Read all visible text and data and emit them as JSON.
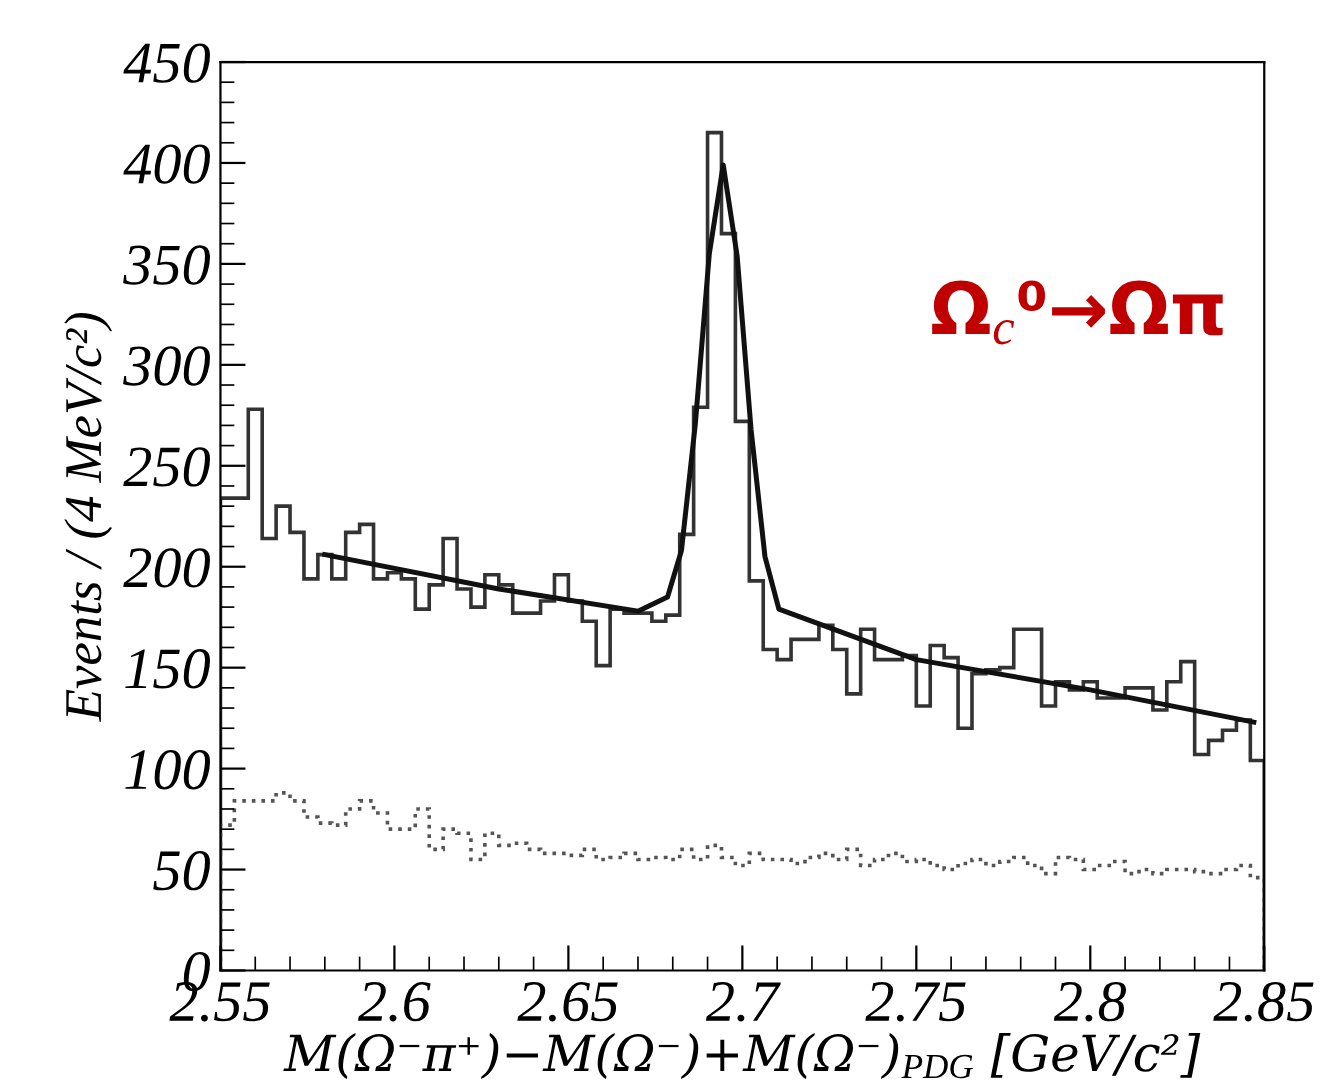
{
  "chart_data": {
    "type": "histogram",
    "xlabel": "M(Ω⁻π⁺)−M(Ω⁻)+M(Ω⁻)$_{PDG}$ [GeV/c²]",
    "ylabel": "Events / (4 MeV/c²)",
    "annotations": [
      "Ω$_{c}$⁰→Ωπ"
    ],
    "bins": [
      2.55,
      2.554,
      2.558,
      2.562,
      2.566,
      2.57,
      2.574,
      2.578,
      2.582,
      2.586,
      2.59,
      2.594,
      2.598,
      2.602,
      2.606,
      2.61,
      2.614,
      2.618,
      2.622,
      2.626,
      2.63,
      2.634,
      2.638,
      2.642,
      2.646,
      2.65,
      2.654,
      2.658,
      2.662,
      2.666,
      2.67,
      2.674,
      2.678,
      2.682,
      2.686,
      2.69,
      2.694,
      2.698,
      2.702,
      2.706,
      2.71,
      2.714,
      2.718,
      2.722,
      2.726,
      2.73,
      2.734,
      2.738,
      2.742,
      2.746,
      2.75,
      2.754,
      2.758,
      2.762,
      2.766,
      2.77,
      2.774,
      2.778,
      2.782,
      2.786,
      2.79,
      2.794,
      2.798,
      2.802,
      2.806,
      2.81,
      2.814,
      2.818,
      2.822,
      2.826,
      2.83,
      2.834,
      2.838,
      2.842,
      2.846,
      2.85
    ],
    "series": [
      {
        "color": "#333333",
        "line_style": "solid",
        "values": [
          234,
          234,
          278,
          214,
          230,
          217,
          194,
          206,
          194,
          217,
          221,
          194,
          197,
          194,
          179,
          191,
          214,
          189,
          180,
          196,
          191,
          177,
          177,
          183,
          196,
          183,
          173,
          151,
          179,
          177,
          177,
          173,
          176,
          216,
          279,
          415,
          365,
          272,
          193,
          159,
          154,
          164,
          164,
          171,
          159,
          137,
          169,
          154,
          154,
          156,
          131,
          161,
          155,
          120,
          147,
          149,
          150,
          169,
          169,
          131,
          143,
          139,
          143,
          135,
          135,
          140,
          140,
          129,
          143,
          153,
          107,
          114,
          119,
          124,
          104
        ]
      },
      {
        "color": "#555555",
        "line_style": "dotted",
        "values": [
          72,
          84,
          84,
          84,
          88,
          84,
          76,
          73,
          72,
          80,
          84,
          78,
          70,
          70,
          80,
          60,
          70,
          68,
          55,
          68,
          62,
          63,
          60,
          58,
          58,
          57,
          60,
          55,
          56,
          58,
          55,
          56,
          55,
          60,
          55,
          62,
          56,
          52,
          58,
          55,
          55,
          53,
          56,
          58,
          55,
          60,
          52,
          55,
          58,
          54,
          55,
          52,
          50,
          53,
          55,
          52,
          54,
          56,
          52,
          48,
          56,
          55,
          50,
          52,
          54,
          48,
          50,
          48,
          50,
          50,
          49,
          48,
          50,
          52,
          46
        ]
      },
      {
        "type": "line",
        "color": "#111111",
        "line_style": "solid",
        "x": [
          2.58,
          2.63,
          2.67,
          2.6785,
          2.6825,
          2.6865,
          2.6905,
          2.6945,
          2.6985,
          2.7025,
          2.7065,
          2.7105,
          2.75,
          2.8,
          2.847
        ],
        "values": [
          206,
          189,
          178,
          185,
          208,
          271,
          355,
          399,
          354,
          268,
          205,
          179,
          154,
          139,
          123
        ]
      }
    ],
    "xlim": [
      2.55,
      2.85
    ],
    "ylim": [
      0,
      450
    ],
    "xticks": [
      2.55,
      2.6,
      2.65,
      2.7,
      2.75,
      2.8,
      2.85
    ],
    "yticks": [
      0,
      50,
      100,
      150,
      200,
      250,
      300,
      350,
      400,
      450
    ],
    "grid": false,
    "legend": false
  }
}
